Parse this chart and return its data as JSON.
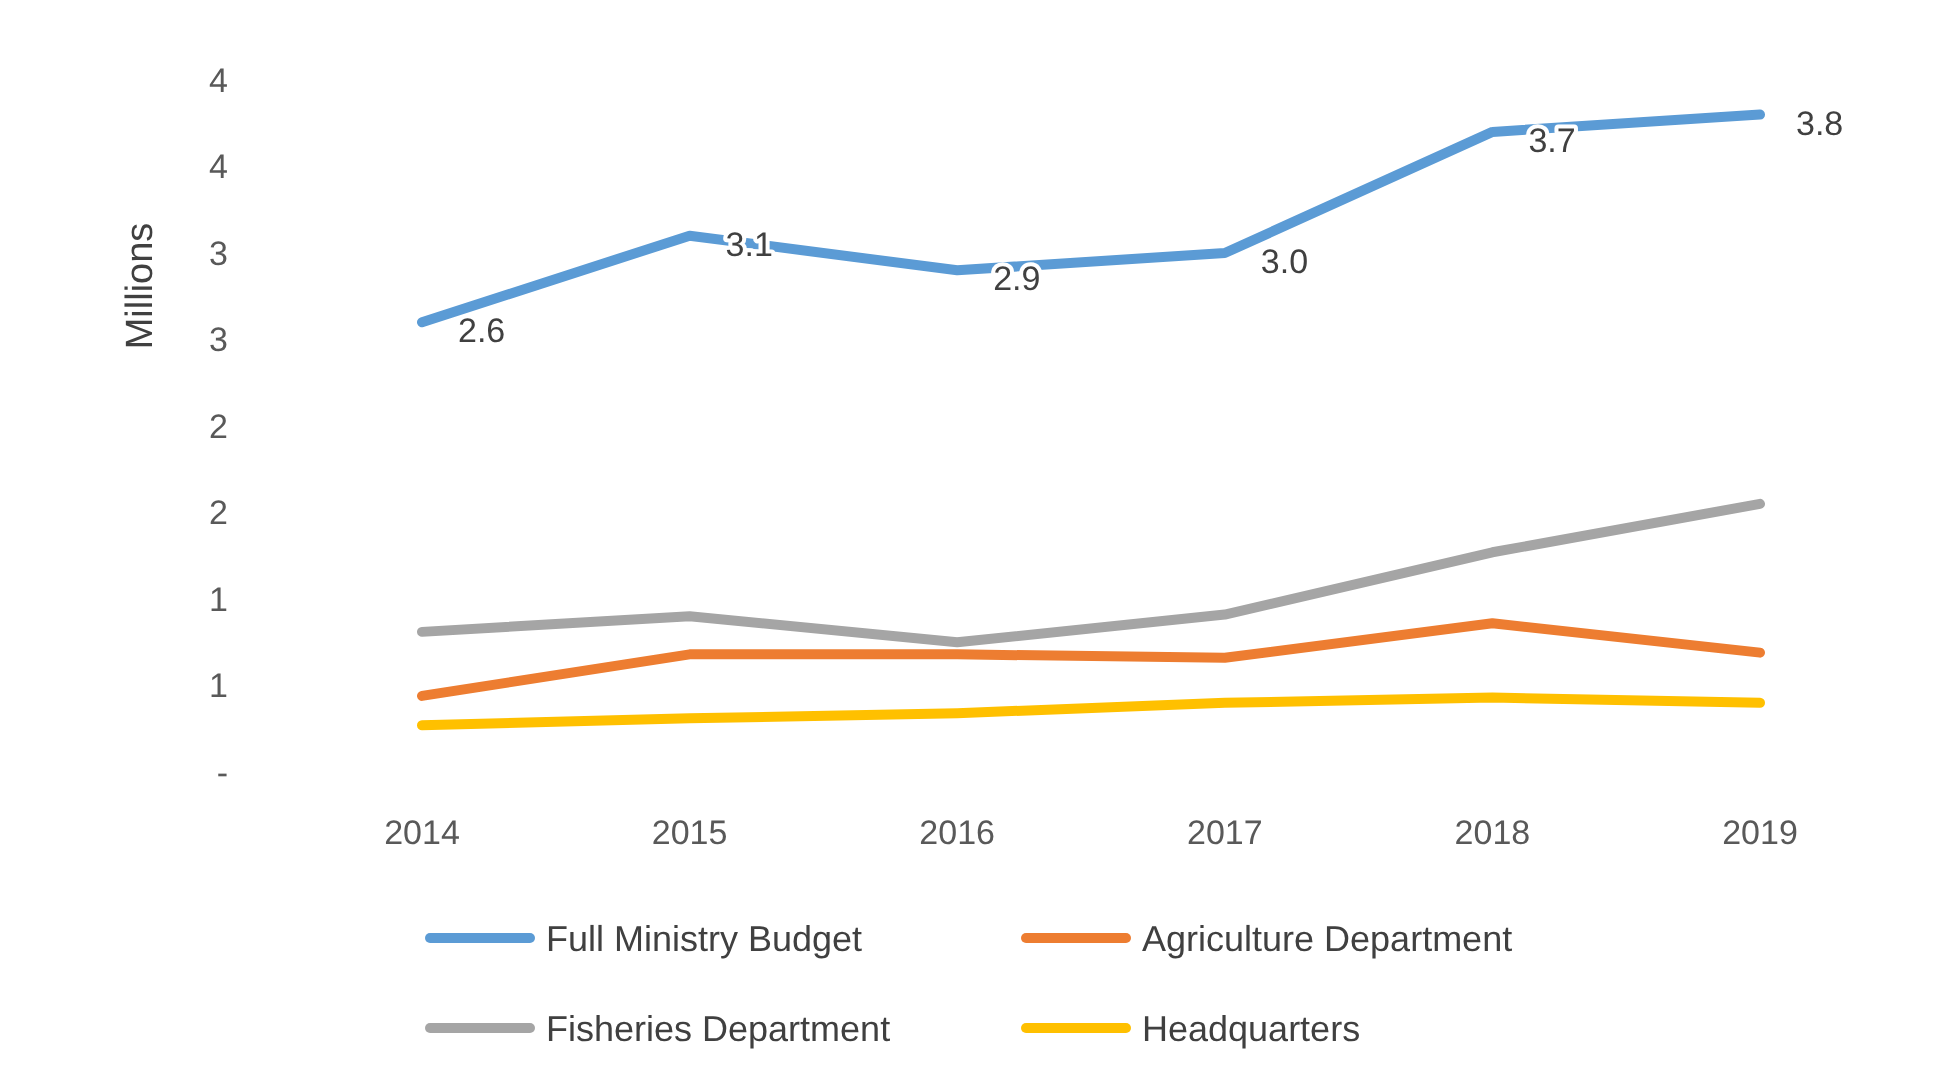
{
  "chart_data": {
    "type": "line",
    "ylabel": "Millions",
    "categories": [
      "2014",
      "2015",
      "2016",
      "2017",
      "2018",
      "2019"
    ],
    "series": [
      {
        "name": "Full Ministry Budget",
        "color": "#5b9bd5",
        "values": [
          2.6,
          3.1,
          2.9,
          3.0,
          3.7,
          3.8
        ],
        "value_labels": [
          "2.6",
          "3.1",
          "2.9",
          "3.0",
          "3.7",
          "3.8"
        ]
      },
      {
        "name": "Agriculture Department",
        "color": "#ed7d31",
        "values": [
          0.44,
          0.68,
          0.68,
          0.66,
          0.86,
          0.69
        ]
      },
      {
        "name": "Fisheries Department",
        "color": "#a5a5a5",
        "values": [
          0.81,
          0.9,
          0.75,
          0.91,
          1.27,
          1.55
        ]
      },
      {
        "name": "Headquarters",
        "color": "#ffc000",
        "values": [
          0.27,
          0.31,
          0.34,
          0.4,
          0.43,
          0.4
        ]
      }
    ],
    "ylim": [
      0,
      4
    ],
    "yticks": [
      {
        "value": 0,
        "label": "-"
      },
      {
        "value": 0.5,
        "label": "1"
      },
      {
        "value": 1,
        "label": "1"
      },
      {
        "value": 1.5,
        "label": "2"
      },
      {
        "value": 2,
        "label": "2"
      },
      {
        "value": 2.5,
        "label": "3"
      },
      {
        "value": 3,
        "label": "3"
      },
      {
        "value": 3.5,
        "label": "4"
      },
      {
        "value": 4,
        "label": "4"
      }
    ],
    "legend": "bottom",
    "line_style": "solid",
    "marker": "none"
  }
}
